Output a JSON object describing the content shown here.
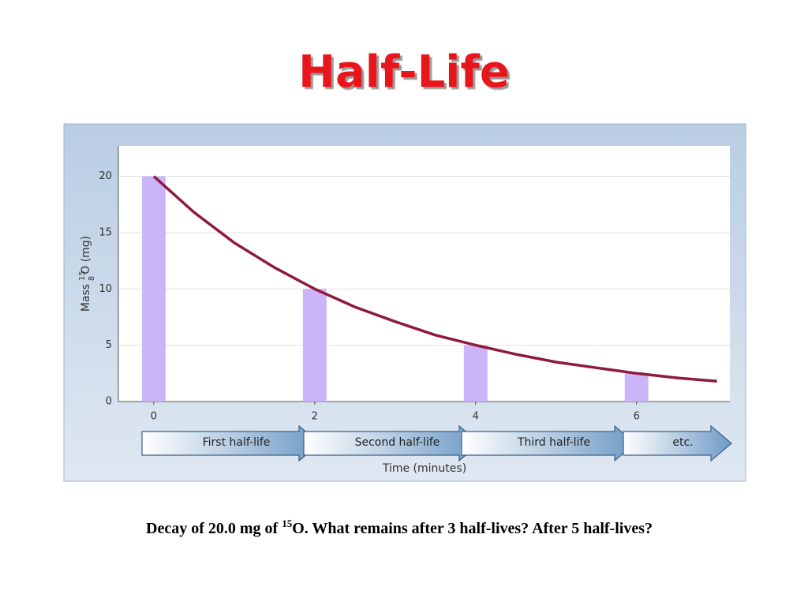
{
  "title": "Half-Life",
  "chart_data": {
    "type": "bar",
    "x": [
      0,
      2,
      4,
      6
    ],
    "values": [
      20,
      10,
      5,
      2.5
    ],
    "color": "#cbb5f8",
    "overlay": {
      "type": "line",
      "x": [
        0,
        0.5,
        1,
        1.5,
        2,
        2.5,
        3,
        3.5,
        4,
        4.5,
        5,
        5.5,
        6,
        6.5,
        7
      ],
      "values": [
        20,
        16.8,
        14.1,
        11.9,
        10,
        8.4,
        7.1,
        5.9,
        5,
        4.2,
        3.5,
        3.0,
        2.5,
        2.1,
        1.8
      ],
      "color": "#8e1a3c"
    },
    "xlim": [
      -0.44,
      7.16
    ],
    "ylim": [
      0,
      22.7
    ],
    "xticks": [
      0,
      2,
      4,
      6
    ],
    "yticks": [
      0,
      5,
      10,
      15,
      20
    ],
    "grid": true,
    "y_label": {
      "prefix": "Mass",
      "mass_number": "15",
      "atomic_number": "8",
      "suffix": "O (mg)"
    },
    "x_label": "Time (minutes)",
    "annotations": [
      "First half-life",
      "Second half-life",
      "Third half-life",
      "etc."
    ]
  },
  "caption": {
    "before": "Decay of 20.0 mg of",
    "superscript": "15",
    "after": "O. What remains after 3 half-lives? After 5 half-lives?"
  }
}
